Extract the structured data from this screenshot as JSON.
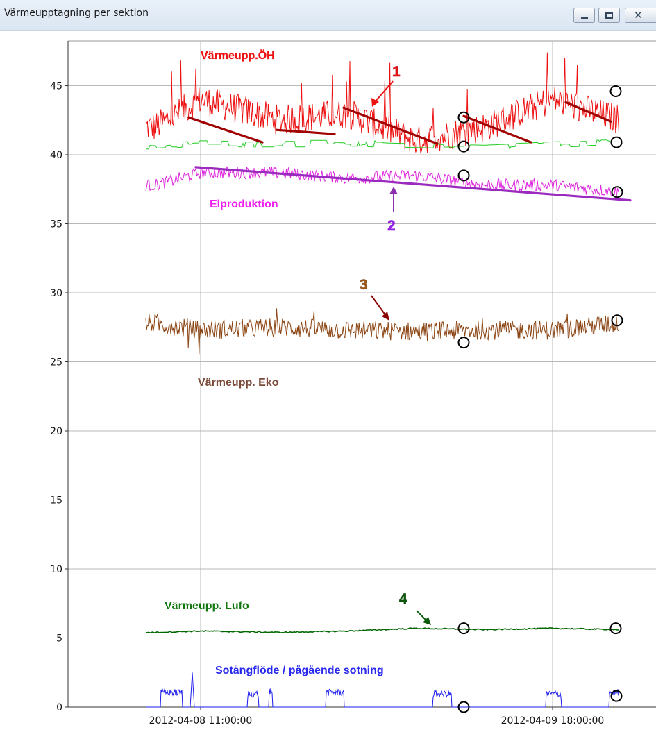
{
  "window": {
    "title": "Värmeupptagning per sektion",
    "controls": [
      {
        "name": "minimize-button",
        "icon": "minimize-icon"
      },
      {
        "name": "maximize-button",
        "icon": "maximize-icon"
      },
      {
        "name": "close-button",
        "icon": "close-icon"
      }
    ]
  },
  "chart_data": {
    "type": "line",
    "title": "",
    "xlabel": "",
    "ylabel": "",
    "ylim": [
      0,
      48
    ],
    "y_ticks": [
      0,
      5,
      10,
      15,
      20,
      25,
      30,
      35,
      40,
      45
    ],
    "y_tick_labels": [
      "0",
      "5",
      "10",
      "15",
      "20",
      "25",
      "30",
      "35",
      "40",
      "45"
    ],
    "x_tick_labels": [
      "2012-04-08 11:00:00",
      "2012-04-09 18:00:00"
    ],
    "grid": true,
    "legend": "none",
    "series": [
      {
        "name": "Värmeupp.ÖH",
        "color": "#ee1111",
        "x": [
          "2012-04-08 07:00",
          "2012-04-08 11:00",
          "2012-04-08 18:00",
          "2012-04-09 00:00",
          "2012-04-09 06:00",
          "2012-04-09 12:00",
          "2012-04-09 18:00",
          "2012-04-10 00:00"
        ],
        "values": [
          42,
          44,
          42.5,
          43,
          41,
          42,
          44,
          42.5
        ]
      },
      {
        "name": "",
        "color": "#22cc22",
        "x": [
          "2012-04-08 07:00",
          "2012-04-08 11:00",
          "2012-04-08 18:00",
          "2012-04-09 00:00",
          "2012-04-09 06:00",
          "2012-04-09 12:00",
          "2012-04-09 18:00",
          "2012-04-10 00:00"
        ],
        "values": [
          40.6,
          40.8,
          40.8,
          40.8,
          40.7,
          40.6,
          40.8,
          40.9
        ]
      },
      {
        "name": "Elproduktion",
        "color": "#dd22dd",
        "x": [
          "2012-04-08 07:00",
          "2012-04-08 11:00",
          "2012-04-08 18:00",
          "2012-04-09 00:00",
          "2012-04-09 06:00",
          "2012-04-09 12:00",
          "2012-04-09 18:00",
          "2012-04-10 00:00"
        ],
        "values": [
          37.8,
          38.7,
          38.7,
          38.3,
          38.5,
          37.8,
          37.8,
          37.3
        ]
      },
      {
        "name": "Värmeupp. Eko",
        "color": "#8b4513",
        "x": [
          "2012-04-08 07:00",
          "2012-04-08 11:00",
          "2012-04-08 18:00",
          "2012-04-09 00:00",
          "2012-04-09 06:00",
          "2012-04-09 12:00",
          "2012-04-09 18:00",
          "2012-04-10 00:00"
        ],
        "values": [
          27.8,
          27.3,
          27.5,
          27.3,
          27.2,
          27.3,
          27.3,
          27.8
        ]
      },
      {
        "name": "Värmeupp. Lufo",
        "color": "#006600",
        "x": [
          "2012-04-08 07:00",
          "2012-04-08 11:00",
          "2012-04-08 18:00",
          "2012-04-09 00:00",
          "2012-04-09 06:00",
          "2012-04-09 12:00",
          "2012-04-09 18:00",
          "2012-04-10 00:00"
        ],
        "values": [
          5.4,
          5.5,
          5.4,
          5.5,
          5.7,
          5.6,
          5.7,
          5.6
        ]
      },
      {
        "name": "Sotångflöde / pågående sotning",
        "color": "#1a1aee",
        "x": [
          "2012-04-08 07:00",
          "2012-04-08 11:00",
          "2012-04-08 18:00",
          "2012-04-09 00:00",
          "2012-04-09 06:00",
          "2012-04-09 12:00",
          "2012-04-09 18:00",
          "2012-04-10 00:00"
        ],
        "values": [
          0,
          0.6,
          0,
          0,
          0,
          0,
          0.5,
          0.6
        ]
      }
    ],
    "annotations": [
      "1",
      "2",
      "3",
      "4"
    ]
  }
}
